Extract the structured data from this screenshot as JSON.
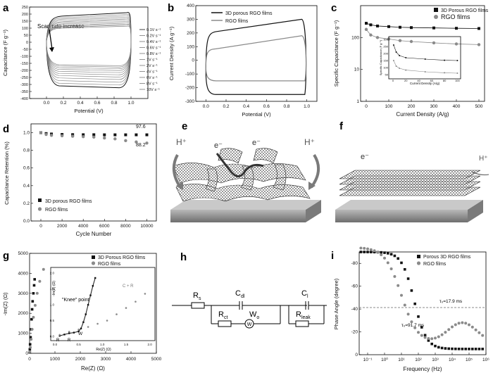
{
  "panel_letters": {
    "a": "a",
    "b": "b",
    "c": "c",
    "d": "d",
    "e": "e",
    "f": "f",
    "g": "g",
    "h": "h",
    "i": "i"
  },
  "colors": {
    "porous": "#111111",
    "rgo": "#8a8a8a",
    "dashed_ref": "#666666",
    "sheet": "#444444",
    "substrate": "#9c9c9c"
  },
  "chart_data": [
    {
      "id": "a",
      "type": "line",
      "xlabel": "Potential (V)",
      "ylabel": "Capacitance (F g⁻¹)",
      "annotation": "Scan rate increase",
      "xlim": [
        -0.2,
        1.2
      ],
      "ylim": [
        -400,
        250
      ],
      "xticks": [
        "0.0",
        "0.2",
        "0.4",
        "0.6",
        "0.8",
        "1.0"
      ],
      "yticks": [
        "-400",
        "-350",
        "-300",
        "-250",
        "-200",
        "-150",
        "-100",
        "-50",
        "0",
        "50",
        "100",
        "150",
        "200",
        "250"
      ],
      "legend": [
        "0.1V s⁻¹",
        "0.2V s⁻¹",
        "0.4V s⁻¹",
        "0.6V s⁻¹",
        "0.8V s⁻¹",
        "1V s⁻¹",
        "2V s⁻¹",
        "4V s⁻¹",
        "6V s⁻¹",
        "8V s⁻¹",
        "10V s⁻¹"
      ],
      "series_upper": [
        200,
        188,
        178,
        168,
        158,
        150,
        140,
        130,
        122,
        115,
        108
      ],
      "series_lower": [
        -330,
        -310,
        -290,
        -270,
        -252,
        -236,
        -220,
        -205,
        -192,
        -180,
        -170
      ]
    },
    {
      "id": "b",
      "type": "line",
      "xlabel": "Potential (V)",
      "ylabel": "Current Density (A g⁻¹)",
      "xlim": [
        -0.1,
        1.1
      ],
      "ylim": [
        -300,
        400
      ],
      "xticks": [
        "0.0",
        "0.2",
        "0.4",
        "0.6",
        "0.8",
        "1.0"
      ],
      "yticks": [
        "-300",
        "-200",
        "-100",
        "0",
        "100",
        "200",
        "300",
        "400"
      ],
      "series": [
        {
          "name": "3D porous RGO films",
          "upper_start": 200,
          "upper_end": 300,
          "lower": -250
        },
        {
          "name": "RGO films",
          "upper_start": 80,
          "upper_end": 180,
          "lower": -150
        }
      ]
    },
    {
      "id": "c",
      "type": "scatter",
      "xlabel": "Current Density (A/g)",
      "ylabel": "Specific Capacitance (F g⁻¹)",
      "yscale": "log",
      "xticks": [
        "0",
        "100",
        "200",
        "300",
        "400",
        "500"
      ],
      "yticks": [
        "1",
        "10",
        "100"
      ],
      "x": [
        0,
        20,
        50,
        100,
        150,
        200,
        300,
        400,
        500
      ],
      "series": [
        {
          "name": "3D Porous RGO films",
          "values": [
            280,
            250,
            230,
            220,
            210,
            205,
            200,
            195,
            192
          ]
        },
        {
          "name": "RGO films",
          "values": [
            180,
            120,
            100,
            90,
            80,
            75,
            68,
            63,
            60
          ]
        }
      ],
      "inset": {
        "xlabel": "Current Density (A/g)",
        "ylabel": "Specific Capacitance (F g⁻¹)",
        "xticks": [
          "0",
          "20",
          "40",
          "60",
          "80",
          "100"
        ],
        "yticks": [
          "50",
          "100",
          "150",
          "200",
          "250",
          "300"
        ]
      }
    },
    {
      "id": "d",
      "type": "scatter",
      "xlabel": "Cycle Number",
      "ylabel": "Capacitance Retention (%)",
      "xticks": [
        "0",
        "2000",
        "4000",
        "6000",
        "8000",
        "10000"
      ],
      "yticks": [
        "0.0",
        "0.2",
        "0.4",
        "0.6",
        "0.8",
        "1.0"
      ],
      "data_labels": [
        "97.6",
        "88.2"
      ],
      "series": [
        {
          "name": "3D porous RGO films",
          "x": [
            0,
            500,
            1000,
            2000,
            3000,
            4000,
            5000,
            6000,
            7000,
            8000,
            9000,
            10000
          ],
          "values": [
            1.0,
            0.99,
            0.985,
            0.98,
            0.978,
            0.977,
            0.977,
            0.976,
            0.976,
            0.976,
            0.976,
            0.976
          ]
        },
        {
          "name": "RGO films",
          "x": [
            0,
            500,
            1000,
            2000,
            3000,
            4000,
            5000,
            6000,
            7000,
            8000,
            9000,
            10000
          ],
          "values": [
            1.0,
            0.98,
            0.97,
            0.965,
            0.96,
            0.955,
            0.95,
            0.94,
            0.93,
            0.91,
            0.895,
            0.882
          ]
        }
      ]
    },
    {
      "id": "g",
      "type": "scatter",
      "xlabel": "Re(Z) (Ω)",
      "ylabel": "-Im(Z) (Ω)",
      "xticks": [
        "0",
        "1000",
        "2000",
        "3000",
        "4000",
        "5000"
      ],
      "yticks": [
        "0",
        "1000",
        "2000",
        "3000",
        "4000",
        "5000"
      ],
      "series": [
        {
          "name": "3D Porous RGO films"
        },
        {
          "name": "RGO films"
        }
      ],
      "inset": {
        "xlabel": "Re(Z) (Ω)",
        "ylabel": "-Im(Z) (Ω)",
        "xticks": [
          "0.0",
          "0.5",
          "1.0",
          "1.5",
          "2.0"
        ],
        "yticks": [
          "0.0",
          "0.5",
          "1.0",
          "1.5",
          "2.0"
        ],
        "knee": "\"Knee\" point",
        "wo": "W",
        "rs": "R",
        "rct": "R",
        "cl_leak": "C + R"
      }
    },
    {
      "id": "i",
      "type": "line",
      "xlabel": "Frequency (Hz)",
      "ylabel": "Phase Angle (degree)",
      "xticks": [
        "10⁻¹",
        "10⁰",
        "10¹",
        "10²",
        "10³",
        "10⁴",
        "10⁵",
        "10⁶"
      ],
      "yticks": [
        "-80",
        "-60",
        "-40",
        "-20",
        "0"
      ],
      "annotations": [
        "τ₀=17.9 ms",
        "τ₀=91.7 ms"
      ],
      "series": [
        {
          "name": "Porous 3D RGO films"
        },
        {
          "name": "RGO films"
        }
      ]
    }
  ],
  "schematic_e": {
    "h_left": "H⁺",
    "h_right": "H⁺",
    "e1": "e⁻",
    "e2": "e⁻",
    "e3": "e⁻"
  },
  "schematic_f": {
    "e": "e⁻",
    "h": "H⁺"
  },
  "circuit_h": {
    "rs": "R",
    "rs_sub": "s",
    "cdl": "C",
    "cdl_sub": "dl",
    "rct": "R",
    "rct_sub": "ct",
    "wo": "W",
    "wo_sub": "o",
    "wo_circle": "W",
    "cl": "C",
    "cl_sub": "l",
    "rleak": "R",
    "rleak_sub": "leak"
  }
}
